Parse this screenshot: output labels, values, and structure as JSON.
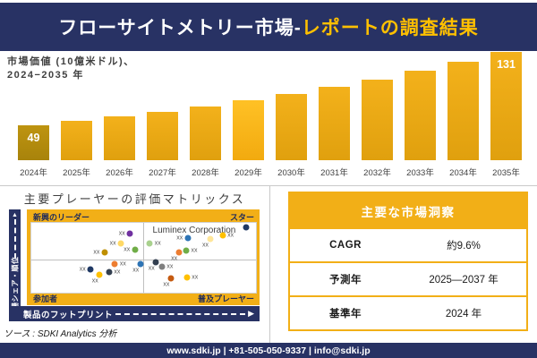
{
  "colors": {
    "navy": "#283264",
    "gold": "#F2AF17",
    "gold_title_text": "#FFC000",
    "bar_gold": "#E8A812",
    "bar_dark_gold": "#B8900D",
    "text_dark": "#3F3F3F"
  },
  "header": {
    "title_white": "フローサイトメトリー市場-",
    "title_gold": "レポートの調査結果"
  },
  "chart_label": {
    "line1": "市場価値 (10億米ドル)、",
    "line2": "2024−2035 年"
  },
  "chart_data": [
    {
      "type": "bar",
      "title": "市場価値 (10億米ドル)、2024−2035 年",
      "ylabel": "市場価値 (10億米ドル)",
      "xlabel": "",
      "categories": [
        "2024年",
        "2025年",
        "2026年",
        "2027年",
        "2028年",
        "2029年",
        "2030年",
        "2031年",
        "2032年",
        "2033年",
        "2034年",
        "2035年"
      ],
      "values": [
        49,
        54,
        59,
        64,
        70,
        77,
        84,
        92,
        100,
        110,
        120,
        131
      ],
      "value_labels_shown": {
        "2024年": 49,
        "2035年": 131
      },
      "ylim": [
        0,
        140
      ],
      "grid": false,
      "legend": false
    },
    {
      "type": "scatter",
      "title": "主要プレーヤーの評価マトリックス",
      "xlabel": "製品のフットプリント",
      "ylabel": "市場シェア・順位",
      "quadrants": {
        "top_left": "新興のリーダー",
        "top_right": "スター",
        "bottom_left": "参加者",
        "bottom_right": "普及プレーヤー"
      },
      "annotation": "Luminex Corporation",
      "point_label": "xx",
      "points": [
        {
          "x": 43.9,
          "y": 15.3,
          "color": "#7030A0",
          "label": "left"
        },
        {
          "x": 39.9,
          "y": 29.8,
          "color": "#FFD966",
          "label": "left"
        },
        {
          "x": 32.6,
          "y": 42.9,
          "color": "#BF8F00",
          "label": "left"
        },
        {
          "x": 46.1,
          "y": 38.8,
          "color": "#70AD47",
          "label": "left"
        },
        {
          "x": 95.6,
          "y": 6.9,
          "color": "#1F3864",
          "label": "none"
        },
        {
          "x": 69.6,
          "y": 22.3,
          "color": "#2E74B5",
          "label": "left"
        },
        {
          "x": 52.7,
          "y": 28.9,
          "color": "#A9D18E",
          "label": "right"
        },
        {
          "x": 79.5,
          "y": 23.6,
          "color": "#FFE699",
          "label": "below"
        },
        {
          "x": 85.1,
          "y": 18.1,
          "color": "#FFC000",
          "label": "right"
        },
        {
          "x": 65.6,
          "y": 42.2,
          "color": "#ED7D31",
          "label": "below"
        },
        {
          "x": 68.9,
          "y": 40.1,
          "color": "#70AD47",
          "label": "right"
        },
        {
          "x": 37.2,
          "y": 59.6,
          "color": "#ED7D31",
          "label": "right"
        },
        {
          "x": 48.5,
          "y": 59.6,
          "color": "#2E74B5",
          "label": "below"
        },
        {
          "x": 26.4,
          "y": 67.0,
          "color": "#1F3864",
          "label": "left"
        },
        {
          "x": 34.6,
          "y": 71.1,
          "color": "#333F50",
          "label": "right"
        },
        {
          "x": 30.4,
          "y": 74.4,
          "color": "#FFC000",
          "label": "below"
        },
        {
          "x": 55.5,
          "y": 56.6,
          "color": "#333F50",
          "label": "below"
        },
        {
          "x": 58.1,
          "y": 62.8,
          "color": "#808080",
          "label": "right"
        },
        {
          "x": 62.1,
          "y": 80.1,
          "color": "#C55A11",
          "label": "below"
        },
        {
          "x": 69.2,
          "y": 78.5,
          "color": "#FFC000",
          "label": "right"
        }
      ]
    }
  ],
  "insights": {
    "title": "主要な市場洞察",
    "rows": [
      {
        "label": "CAGR",
        "value": "約9.6%"
      },
      {
        "label": "予測年",
        "value": "2025—2037 年"
      },
      {
        "label": "基準年",
        "value": "2024 年"
      }
    ]
  },
  "source_note": "ソース : SDKI Analytics 分析",
  "footer": {
    "text": "www.sdki.jp | +81-505-050-9337 | info@sdki.jp"
  }
}
